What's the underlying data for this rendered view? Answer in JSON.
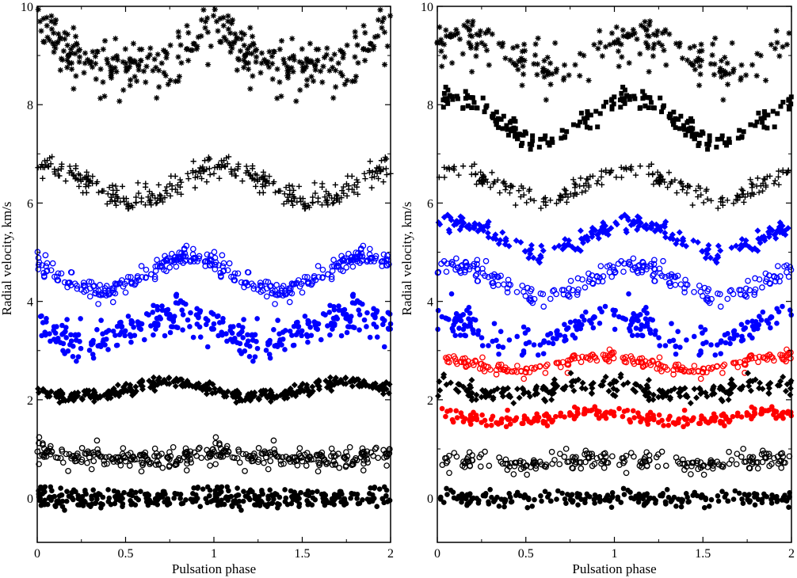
{
  "chart_data": [
    {
      "type": "scatter",
      "panel": "left",
      "xlabel": "Pulsation phase",
      "ylabel": "Radial velocity, km/s",
      "xlim": [
        0,
        2
      ],
      "ylim": [
        -0.9,
        10
      ],
      "xticks": [
        0,
        0.5,
        1,
        1.5,
        2
      ],
      "xtick_labels": [
        "0",
        "0.5",
        "1",
        "1.5",
        "2"
      ],
      "yticks": [
        0,
        2,
        4,
        6,
        8,
        10
      ],
      "ytick_labels": [
        "0",
        "2",
        "4",
        "6",
        "8",
        "10"
      ],
      "grid": false,
      "series": [
        {
          "marker": "asterisk",
          "color": "#000000",
          "offset": 9.0,
          "amp": 0.35,
          "phi": 0.0,
          "noise": 0.28,
          "harm2": 0.15
        },
        {
          "marker": "plus",
          "color": "#000000",
          "offset": 6.4,
          "amp": 0.35,
          "phi": 0.05,
          "noise": 0.12,
          "harm2": 0.0
        },
        {
          "marker": "circle-open",
          "color": "#0000ff",
          "offset": 4.55,
          "amp": 0.35,
          "phi": 0.85,
          "noise": 0.1,
          "harm2": 0.0
        },
        {
          "marker": "circle-filled",
          "color": "#0000ff",
          "offset": 3.45,
          "amp": 0.3,
          "phi": 0.8,
          "noise": 0.18,
          "harm2": 0.0
        },
        {
          "marker": "diamond",
          "color": "#000000",
          "offset": 2.2,
          "amp": 0.15,
          "phi": 0.75,
          "noise": 0.06,
          "harm2": 0.0
        },
        {
          "marker": "circle-open",
          "color": "#000000",
          "offset": 0.85,
          "amp": 0.05,
          "phi": 0.0,
          "noise": 0.11,
          "harm2": 0.0
        },
        {
          "marker": "circle-filled",
          "color": "#000000",
          "offset": 0.0,
          "amp": 0.0,
          "phi": 0.0,
          "noise": 0.1,
          "harm2": 0.0
        }
      ]
    },
    {
      "type": "scatter",
      "panel": "right",
      "xlabel": "Pulsation phase",
      "ylabel": "Radial velocity, km/s",
      "xlim": [
        0,
        2
      ],
      "ylim": [
        -0.9,
        10
      ],
      "xticks": [
        0,
        0.5,
        1,
        1.5,
        2
      ],
      "xtick_labels": [
        "0",
        "0.5",
        "1",
        "1.5",
        "2"
      ],
      "yticks": [
        0,
        2,
        4,
        6,
        8,
        10
      ],
      "ytick_labels": [
        "0",
        "2",
        "4",
        "6",
        "8",
        "10"
      ],
      "grid": false,
      "series": [
        {
          "marker": "asterisk",
          "color": "#000000",
          "offset": 9.1,
          "amp": 0.35,
          "phi": 0.15,
          "noise": 0.25,
          "harm2": 0.0
        },
        {
          "marker": "square",
          "color": "#000000",
          "offset": 7.7,
          "amp": 0.45,
          "phi": 0.1,
          "noise": 0.1,
          "harm2": 0.0
        },
        {
          "marker": "plus",
          "color": "#000000",
          "offset": 6.4,
          "amp": 0.3,
          "phi": 0.1,
          "noise": 0.12,
          "harm2": 0.0
        },
        {
          "marker": "diamond",
          "color": "#0000ff",
          "offset": 5.3,
          "amp": 0.3,
          "phi": 0.1,
          "noise": 0.1,
          "harm2": 0.0
        },
        {
          "marker": "circle-open",
          "color": "#0000ff",
          "offset": 4.4,
          "amp": 0.3,
          "phi": 0.1,
          "noise": 0.1,
          "harm2": 0.0
        },
        {
          "marker": "circle-filled",
          "color": "#0000ff",
          "offset": 3.4,
          "amp": 0.25,
          "phi": 0.0,
          "noise": 0.15,
          "harm2": 0.0
        },
        {
          "marker": "circle-open",
          "color": "#ff0000",
          "offset": 2.75,
          "amp": 0.15,
          "phi": 0.95,
          "noise": 0.06,
          "harm2": 0.0
        },
        {
          "marker": "diamond",
          "color": "#000000",
          "offset": 2.2,
          "amp": 0.1,
          "phi": 0.9,
          "noise": 0.1,
          "harm2": 0.0
        },
        {
          "marker": "circle-filled",
          "color": "#ff0000",
          "offset": 1.65,
          "amp": 0.08,
          "phi": 0.9,
          "noise": 0.07,
          "harm2": 0.0
        },
        {
          "marker": "circle-open",
          "color": "#000000",
          "offset": 0.75,
          "amp": 0.05,
          "phi": 0.0,
          "noise": 0.1,
          "harm2": 0.0
        },
        {
          "marker": "circle-filled",
          "color": "#000000",
          "offset": 0.0,
          "amp": 0.0,
          "phi": 0.0,
          "noise": 0.08,
          "harm2": 0.0
        }
      ]
    }
  ]
}
